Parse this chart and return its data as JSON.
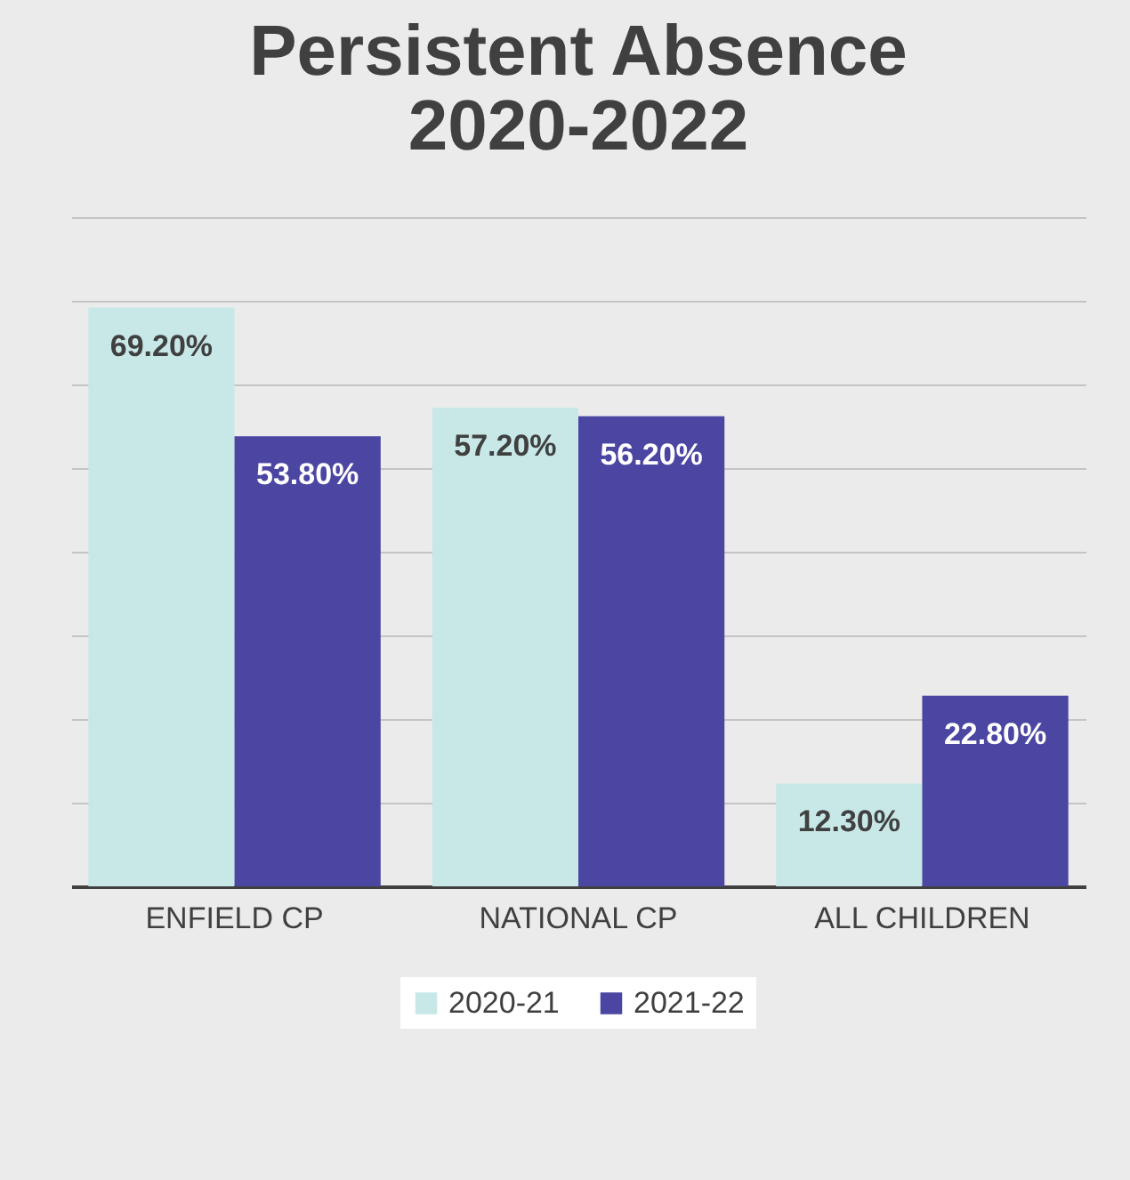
{
  "chart_data": {
    "type": "bar",
    "title": "Persistent Absence 2020-2022",
    "categories": [
      "ENFIELD CP",
      "NATIONAL CP",
      "ALL CHILDREN"
    ],
    "series": [
      {
        "name": "2020-21",
        "color": "#c8e8e8",
        "values": [
          69.2,
          57.2,
          12.3
        ],
        "value_labels": [
          "69.20%",
          "57.20%",
          "12.30%"
        ]
      },
      {
        "name": "2021-22",
        "color": "#4b46a2",
        "values": [
          53.8,
          56.2,
          22.8
        ],
        "value_labels": [
          "53.80%",
          "56.20%",
          "22.80%"
        ]
      }
    ],
    "ylim": [
      0,
      80
    ],
    "yticks": [
      {
        "value": 0,
        "label": null
      },
      {
        "value": 10,
        "label": null
      },
      {
        "value": 20,
        "label": null
      },
      {
        "value": 30,
        "label": null
      },
      {
        "value": 40,
        "label": null
      },
      {
        "value": 50,
        "label": null
      },
      {
        "value": 60,
        "label": null
      },
      {
        "value": 70,
        "label": null
      },
      {
        "value": 80,
        "label": null
      }
    ],
    "tick_labels": "x",
    "grid": "y",
    "legend": "bottom"
  }
}
